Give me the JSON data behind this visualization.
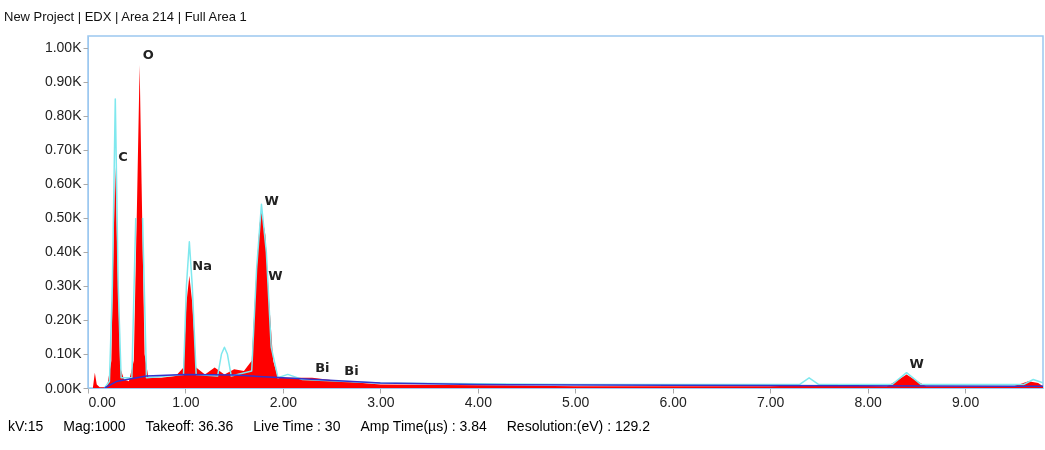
{
  "chart_data": {
    "type": "area",
    "title": "New Project | EDX | Area 214 | Full Area 1",
    "xlim": [
      0,
      9.8
    ],
    "xticks": [
      {
        "value": 0,
        "label": "0.00"
      },
      {
        "value": 1,
        "label": "1.00"
      },
      {
        "value": 2,
        "label": "2.00"
      },
      {
        "value": 3,
        "label": "3.00"
      },
      {
        "value": 4,
        "label": "4.00"
      },
      {
        "value": 5,
        "label": "5.00"
      },
      {
        "value": 6,
        "label": "6.00"
      },
      {
        "value": 7,
        "label": "7.00"
      },
      {
        "value": 8,
        "label": "8.00"
      },
      {
        "value": 9,
        "label": "9.00"
      }
    ],
    "ylim": [
      0,
      1035
    ],
    "yticks": [
      {
        "value": 0,
        "label": "0.00K"
      },
      {
        "value": 100,
        "label": "0.10K"
      },
      {
        "value": 200,
        "label": "0.20K"
      },
      {
        "value": 300,
        "label": "0.30K"
      },
      {
        "value": 400,
        "label": "0.40K"
      },
      {
        "value": 500,
        "label": "0.50K"
      },
      {
        "value": 600,
        "label": "0.60K"
      },
      {
        "value": 700,
        "label": "0.70K"
      },
      {
        "value": 800,
        "label": "0.80K"
      },
      {
        "value": 900,
        "label": "0.90K"
      },
      {
        "value": 1000,
        "label": "1.00K"
      }
    ],
    "grid": false,
    "series": [
      {
        "color": "#ff0000",
        "x": [
          0,
          0.05,
          0.07,
          0.09,
          0.12,
          0.17,
          0.2,
          0.24,
          0.26,
          0.28,
          0.3,
          0.33,
          0.37,
          0.42,
          0.47,
          0.5,
          0.53,
          0.55,
          0.58,
          0.62,
          0.75,
          0.9,
          0.98,
          1.01,
          1.04,
          1.07,
          1.11,
          1.2,
          1.3,
          1.4,
          1.5,
          1.6,
          1.68,
          1.72,
          1.76,
          1.78,
          1.82,
          1.86,
          1.9,
          1.95,
          2.05,
          2.3,
          2.6,
          3.0,
          4.0,
          5.0,
          6.0,
          7.0,
          7.4,
          8.2,
          8.32,
          8.4,
          8.48,
          8.6,
          9.5,
          9.65,
          9.75,
          9.8
        ],
        "values": [
          0,
          0,
          45,
          10,
          2,
          2,
          10,
          80,
          400,
          650,
          400,
          60,
          25,
          20,
          80,
          500,
          950,
          600,
          100,
          30,
          30,
          35,
          60,
          250,
          330,
          250,
          60,
          40,
          60,
          40,
          55,
          50,
          80,
          300,
          480,
          520,
          450,
          250,
          80,
          30,
          30,
          30,
          20,
          10,
          8,
          5,
          5,
          5,
          8,
          5,
          25,
          40,
          25,
          5,
          5,
          20,
          15,
          5
        ]
      },
      {
        "type": "line",
        "color": "#7fe8ee",
        "x": [
          0.17,
          0.22,
          0.25,
          0.28,
          0.31,
          0.34,
          0.45,
          0.49,
          0.53,
          0.56,
          0.6,
          0.98,
          1.01,
          1.04,
          1.07,
          1.11,
          1.33,
          1.37,
          1.4,
          1.43,
          1.47,
          1.68,
          1.73,
          1.78,
          1.83,
          1.88,
          1.95,
          2.05,
          2.2,
          3.0,
          5.0,
          7.3,
          7.4,
          7.5,
          8.25,
          8.4,
          8.55,
          9.6,
          9.7,
          9.8
        ],
        "values": [
          0,
          20,
          300,
          850,
          300,
          30,
          30,
          500,
          null,
          500,
          30,
          40,
          300,
          430,
          300,
          40,
          35,
          100,
          120,
          100,
          35,
          50,
          350,
          540,
          400,
          120,
          30,
          40,
          25,
          15,
          10,
          10,
          30,
          10,
          10,
          45,
          10,
          10,
          25,
          15
        ]
      },
      {
        "type": "line",
        "color": "#3333cc",
        "x": [
          0.17,
          0.3,
          0.6,
          1.0,
          1.5,
          2.0,
          3.0,
          4.0,
          6.0,
          9.8
        ],
        "values": [
          0,
          20,
          35,
          40,
          38,
          30,
          15,
          10,
          8,
          5
        ]
      }
    ],
    "annotations": [
      {
        "text": "C",
        "x": 0.28,
        "y": 650
      },
      {
        "text": "O",
        "x": 0.53,
        "y": 950
      },
      {
        "text": "Na",
        "x": 1.04,
        "y": 330
      },
      {
        "text": "W",
        "x": 1.78,
        "y": 520
      },
      {
        "text": "W",
        "x": 1.82,
        "y": 300
      },
      {
        "text": "Bi",
        "x": 2.3,
        "y": 30
      },
      {
        "text": "Bi",
        "x": 2.6,
        "y": 20
      },
      {
        "text": "W",
        "x": 8.4,
        "y": 40
      },
      "kV:15",
      "Mag:1000",
      "Takeoff: 36.36",
      "Live Time : 30",
      "Amp Time(µs) : 3.84",
      "Resolution:(eV) : 129.2"
    ]
  }
}
